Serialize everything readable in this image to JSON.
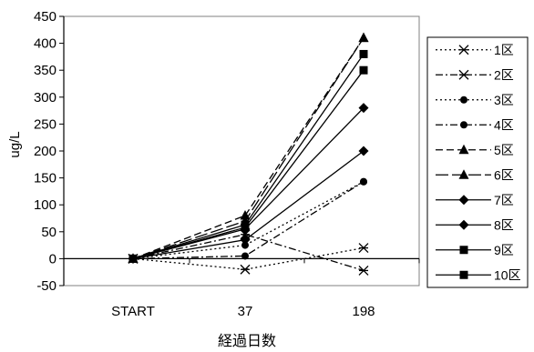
{
  "chart_data": {
    "type": "line",
    "title": "",
    "xlabel": "経過日数",
    "ylabel": "ug/L",
    "categories": [
      "START",
      "37",
      "198"
    ],
    "ylim": [
      -50,
      450
    ],
    "yticks": [
      450,
      400,
      350,
      300,
      250,
      200,
      150,
      100,
      50,
      0,
      -50
    ],
    "grid": false,
    "legend_position": "right",
    "series": [
      {
        "name": "1区",
        "values": [
          0,
          -20,
          20
        ],
        "marker": "asterisk",
        "dash": "dotted"
      },
      {
        "name": "2区",
        "values": [
          0,
          45,
          -22
        ],
        "marker": "asterisk",
        "dash": "dashdot"
      },
      {
        "name": "3区",
        "values": [
          0,
          25,
          143
        ],
        "marker": "circle",
        "dash": "dotted"
      },
      {
        "name": "4区",
        "values": [
          0,
          5,
          143
        ],
        "marker": "circle",
        "dash": "dashdot"
      },
      {
        "name": "5区",
        "values": [
          0,
          80,
          410
        ],
        "marker": "triangle",
        "dash": "dashed"
      },
      {
        "name": "6区",
        "values": [
          0,
          70,
          410
        ],
        "marker": "triangle",
        "dash": "longdash"
      },
      {
        "name": "7区",
        "values": [
          0,
          35,
          200
        ],
        "marker": "diamond",
        "dash": "solid"
      },
      {
        "name": "8区",
        "values": [
          0,
          55,
          280
        ],
        "marker": "diamond",
        "dash": "solid"
      },
      {
        "name": "9区",
        "values": [
          0,
          63,
          380
        ],
        "marker": "square",
        "dash": "solid"
      },
      {
        "name": "10区",
        "values": [
          0,
          58,
          350
        ],
        "marker": "square",
        "dash": "solid"
      }
    ]
  }
}
